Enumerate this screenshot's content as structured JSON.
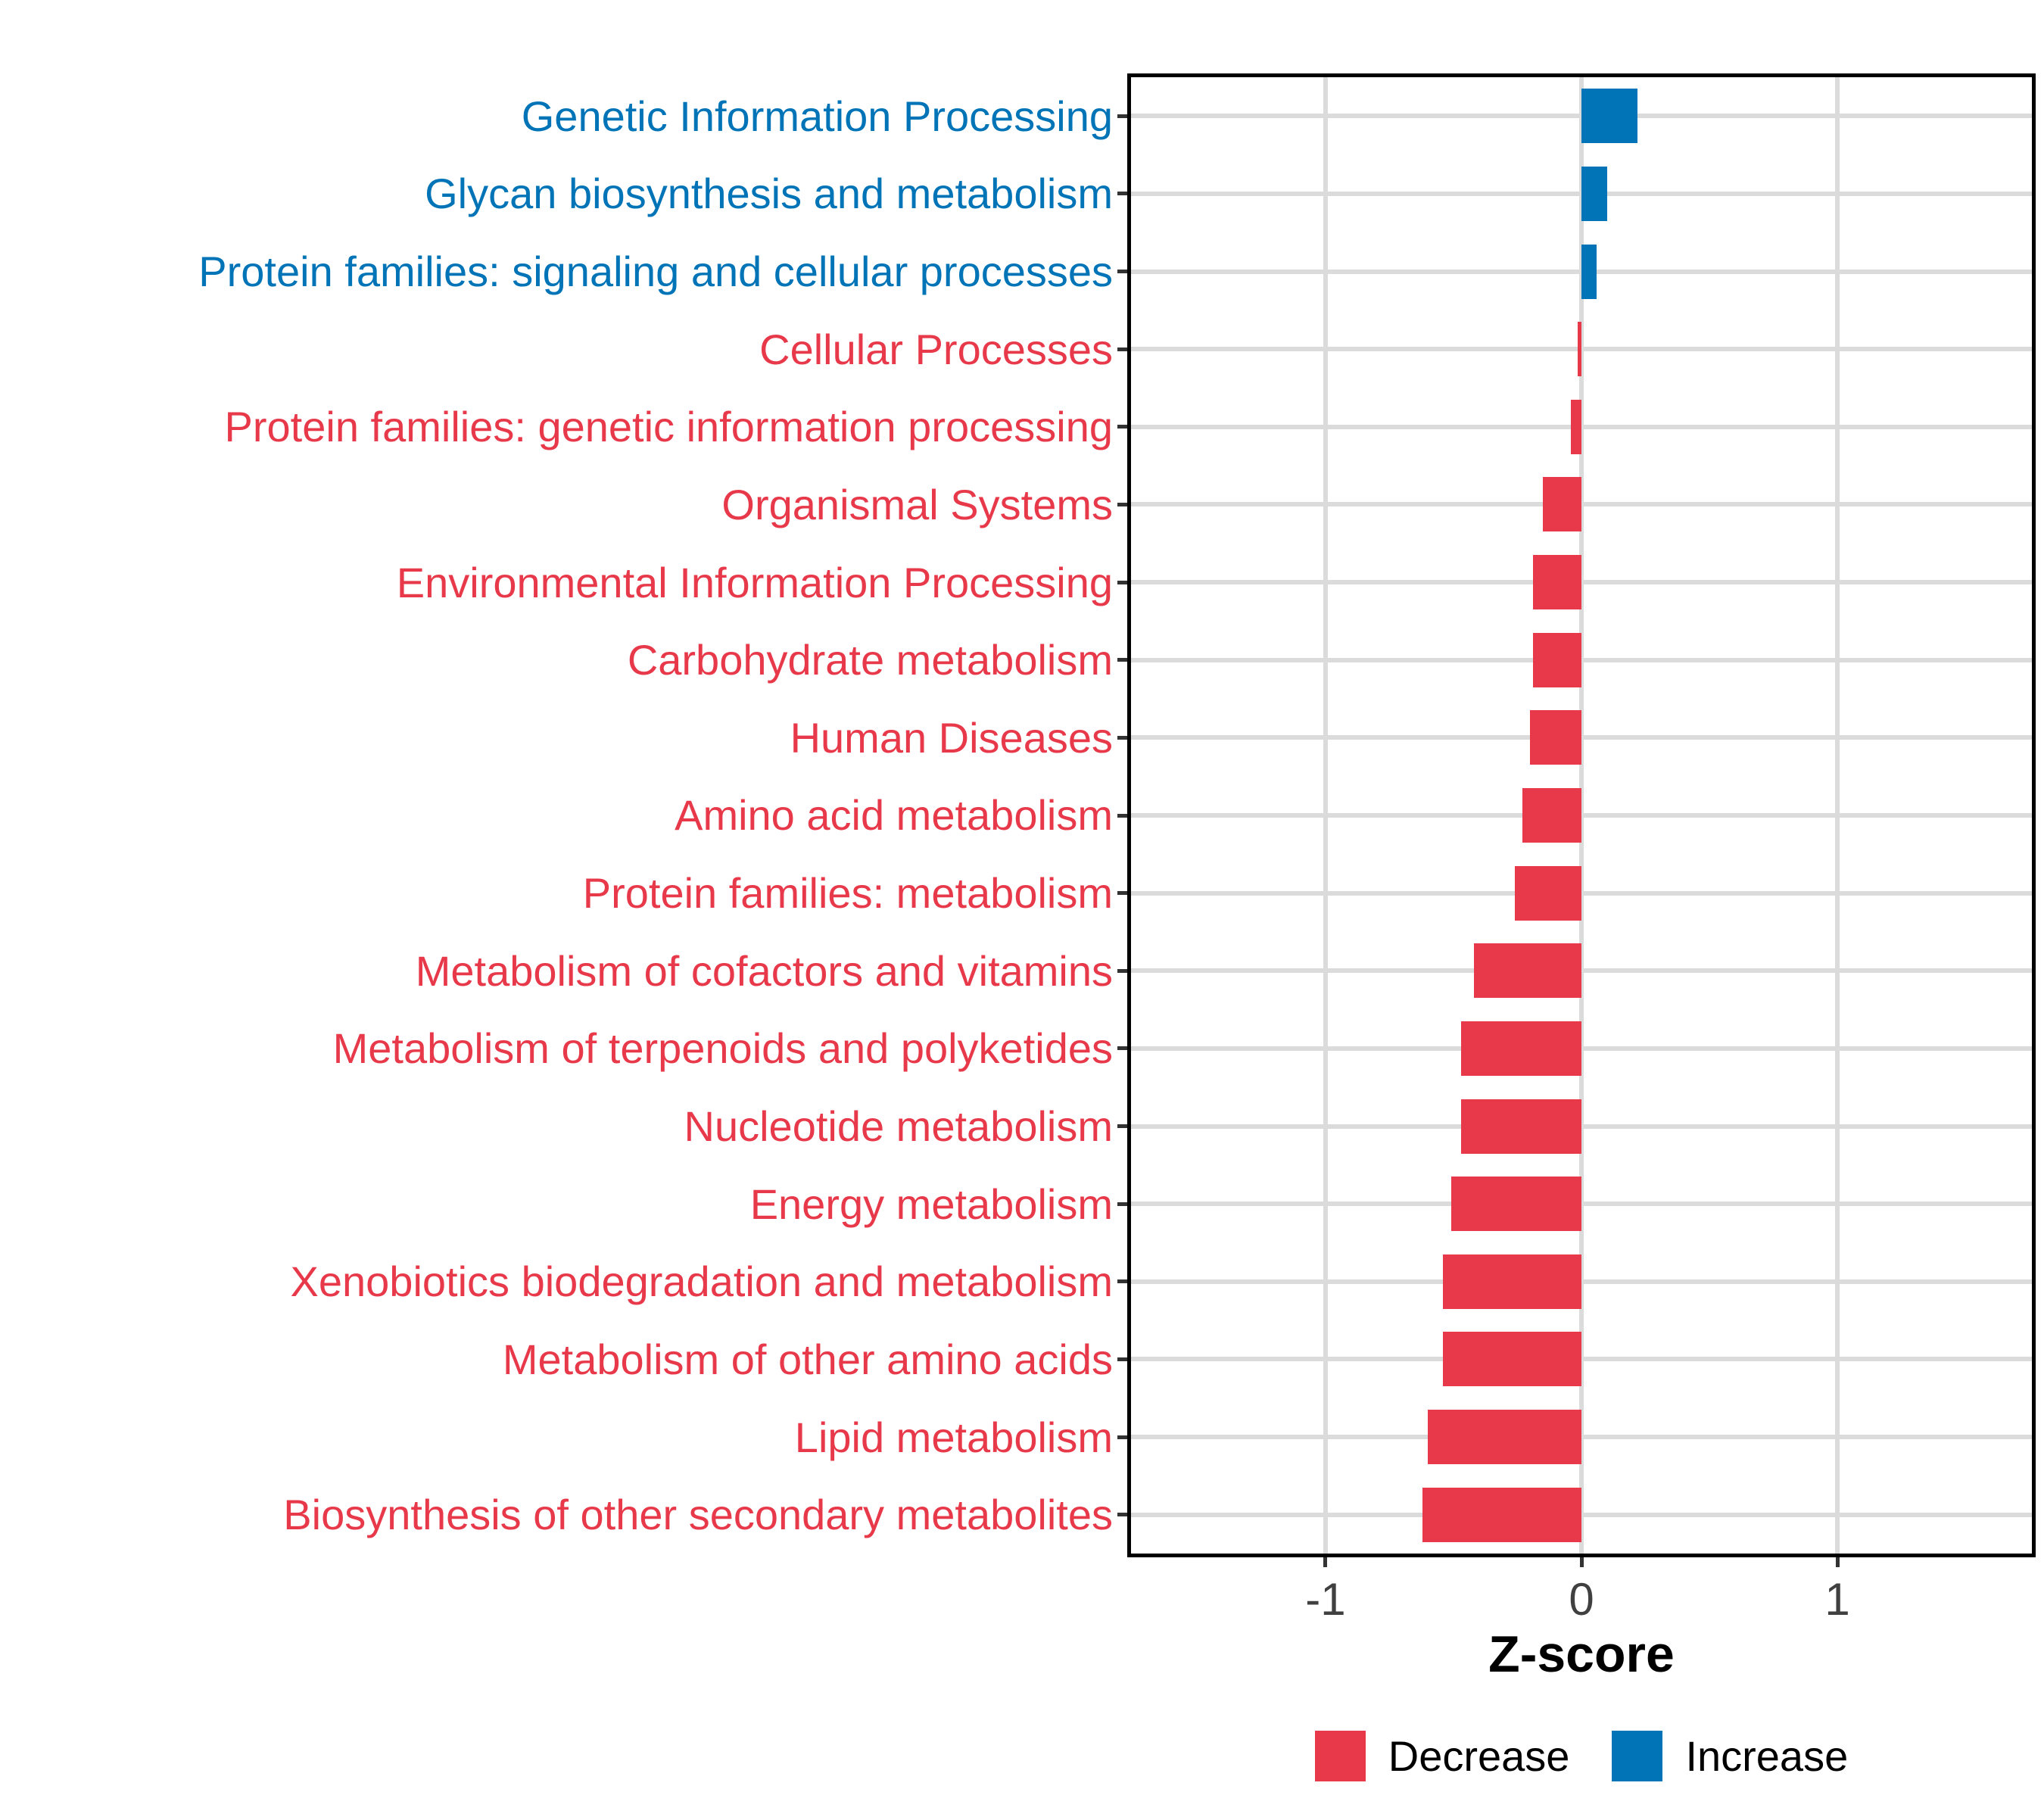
{
  "chart_data": {
    "type": "bar",
    "orientation": "horizontal",
    "title": "",
    "xlabel": "Z-score",
    "ylabel": "",
    "x_tick_values": [
      -1,
      0,
      1
    ],
    "x_tick_labels": [
      "-1",
      "0",
      "1"
    ],
    "xlim": [
      -1.76,
      1.76
    ],
    "grid": "major",
    "legend_position": "bottom",
    "categories": [
      "Genetic Information Processing",
      "Glycan biosynthesis and metabolism",
      "Protein families: signaling and cellular processes",
      "Cellular Processes",
      "Protein families: genetic information processing",
      "Organismal Systems",
      "Environmental Information Processing",
      "Carbohydrate metabolism",
      "Human Diseases",
      "Amino acid metabolism",
      "Protein families: metabolism",
      "Metabolism of cofactors and vitamins",
      "Metabolism of terpenoids and polyketides",
      "Nucleotide metabolism",
      "Energy metabolism",
      "Xenobiotics biodegradation and metabolism",
      "Metabolism of other amino acids",
      "Lipid metabolism",
      "Biosynthesis of other secondary metabolites"
    ],
    "values": [
      0.22,
      0.1,
      0.06,
      -0.015,
      -0.04,
      -0.15,
      -0.19,
      -0.19,
      -0.2,
      -0.23,
      -0.26,
      -0.42,
      -0.47,
      -0.47,
      -0.51,
      -0.54,
      -0.54,
      -0.6,
      -0.62
    ],
    "groups": [
      "Increase",
      "Increase",
      "Increase",
      "Decrease",
      "Decrease",
      "Decrease",
      "Decrease",
      "Decrease",
      "Decrease",
      "Decrease",
      "Decrease",
      "Decrease",
      "Decrease",
      "Decrease",
      "Decrease",
      "Decrease",
      "Decrease",
      "Decrease",
      "Decrease"
    ],
    "legend": [
      {
        "label": "Decrease",
        "color": "#E8394A"
      },
      {
        "label": "Increase",
        "color": "#0074B7"
      }
    ]
  },
  "colors": {
    "increase": "#0074B7",
    "decrease": "#E8394A",
    "gridline": "#DBDBDB",
    "panel_border": "#000000",
    "tick": "#333333",
    "tick_label": "#404040",
    "axis_title": "#000000",
    "legend_text": "#000000"
  }
}
